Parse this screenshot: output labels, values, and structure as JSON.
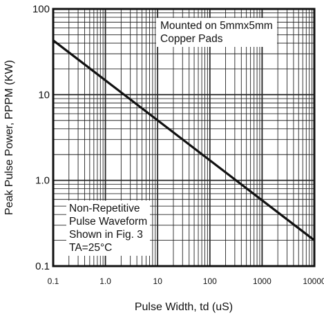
{
  "chart_data": {
    "type": "line",
    "xlabel": "Pulse Width, td (uS)",
    "ylabel": "Peak Pulse Power, PPPM (KW)",
    "x_scale": "log",
    "y_scale": "log",
    "xlim": [
      0.1,
      10000
    ],
    "ylim": [
      0.1,
      100
    ],
    "grid": true,
    "x_ticks": [
      "0.1",
      "1.0",
      "10",
      "100",
      "1000",
      "10000"
    ],
    "y_ticks": [
      "0.1",
      "1.0",
      "10",
      "100"
    ],
    "series": [
      {
        "x": [
          0.1,
          10000
        ],
        "y": [
          43,
          0.2
        ]
      }
    ],
    "annotations": {
      "mounting": [
        "Mounted on 5mmx5mm",
        "Copper Pads"
      ],
      "waveform": [
        "Non-Repetitive",
        "Pulse Waveform",
        "Shown in Fig. 3",
        "TA=25°C"
      ]
    }
  }
}
